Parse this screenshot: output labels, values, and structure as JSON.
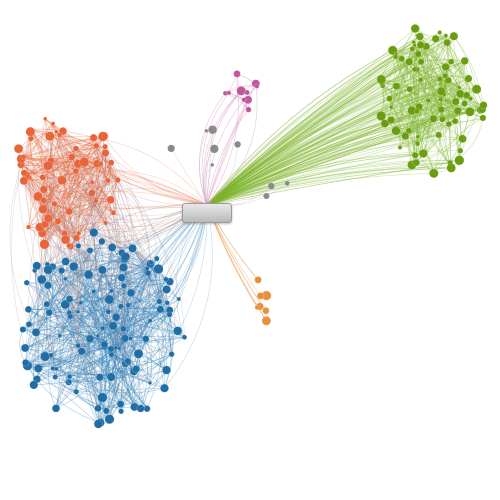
{
  "graph": {
    "center_label": "",
    "clusters": [
      {
        "id": "orange",
        "color": "#e8643a",
        "edge": "#e8643a",
        "members": 62
      },
      {
        "id": "blue",
        "color": "#1f6ea6",
        "edge": "#2b7fb8",
        "members": 120
      },
      {
        "id": "green",
        "color": "#6a9e10",
        "edge": "#7fb52a",
        "members": 85
      },
      {
        "id": "pink",
        "color": "#c0589a",
        "edge": "#d48abb",
        "members": 10
      },
      {
        "id": "amber",
        "color": "#e8913a",
        "edge": "#eea866",
        "members": 7
      },
      {
        "id": "grey",
        "color": "#8a8a8a",
        "edge": "#aaaaaa",
        "members": 9
      }
    ]
  }
}
